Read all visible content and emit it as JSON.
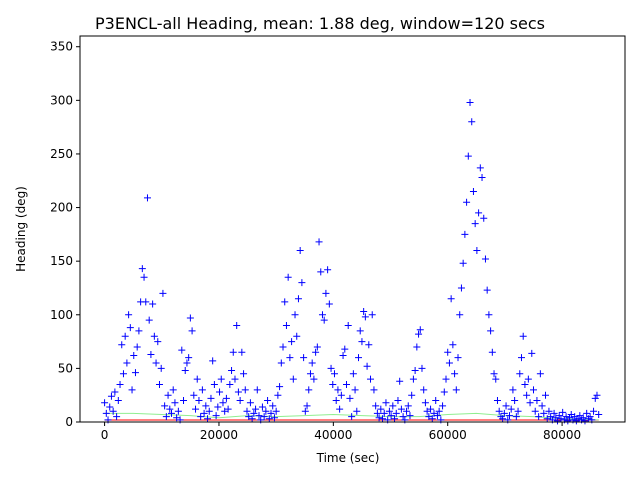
{
  "chart_data": {
    "type": "scatter",
    "title": "P3ENCL-all Heading, mean: 1.88 deg, window=120 secs",
    "xlabel": "Time (sec)",
    "ylabel": "Heading (deg)",
    "xlim": [
      -4300,
      91000
    ],
    "ylim": [
      0,
      360
    ],
    "xticks": [
      0,
      20000,
      40000,
      60000,
      80000
    ],
    "xtick_labels": [
      "0",
      "20000",
      "40000",
      "60000",
      "80000"
    ],
    "yticks": [
      0,
      50,
      100,
      150,
      200,
      250,
      300,
      350
    ],
    "ytick_labels": [
      "0",
      "50",
      "100",
      "150",
      "200",
      "250",
      "300",
      "350"
    ],
    "grid": false,
    "colors": {
      "points": "#0000ff",
      "mean_line": "#ff0000",
      "smooth_line": "#90ee90"
    },
    "series": [
      {
        "marker": "+",
        "points": [
          [
            0,
            18
          ],
          [
            300,
            8
          ],
          [
            600,
            2
          ],
          [
            900,
            14
          ],
          [
            1200,
            24
          ],
          [
            1500,
            10
          ],
          [
            1800,
            28
          ],
          [
            2100,
            5
          ],
          [
            2400,
            20
          ],
          [
            2700,
            35
          ],
          [
            3000,
            72
          ],
          [
            3300,
            45
          ],
          [
            3600,
            80
          ],
          [
            3900,
            55
          ],
          [
            4200,
            100
          ],
          [
            4500,
            88
          ],
          [
            4800,
            30
          ],
          [
            5100,
            62
          ],
          [
            5400,
            46
          ],
          [
            5700,
            70
          ],
          [
            6000,
            85
          ],
          [
            6300,
            112
          ],
          [
            6600,
            143
          ],
          [
            6900,
            135
          ],
          [
            7200,
            112
          ],
          [
            7500,
            209
          ],
          [
            7800,
            95
          ],
          [
            8100,
            63
          ],
          [
            8400,
            110
          ],
          [
            8700,
            80
          ],
          [
            9000,
            55
          ],
          [
            9300,
            75
          ],
          [
            9600,
            35
          ],
          [
            9900,
            50
          ],
          [
            10200,
            120
          ],
          [
            10500,
            15
          ],
          [
            10800,
            5
          ],
          [
            11100,
            25
          ],
          [
            11400,
            12
          ],
          [
            11700,
            8
          ],
          [
            12000,
            30
          ],
          [
            12300,
            18
          ],
          [
            12600,
            4
          ],
          [
            12900,
            10
          ],
          [
            13200,
            2
          ],
          [
            13500,
            67
          ],
          [
            13800,
            20
          ],
          [
            14100,
            48
          ],
          [
            14400,
            55
          ],
          [
            14700,
            60
          ],
          [
            15000,
            97
          ],
          [
            15300,
            85
          ],
          [
            15600,
            25
          ],
          [
            15900,
            12
          ],
          [
            16200,
            40
          ],
          [
            16500,
            20
          ],
          [
            16800,
            5
          ],
          [
            17100,
            30
          ],
          [
            17400,
            8
          ],
          [
            17700,
            15
          ],
          [
            18000,
            3
          ],
          [
            18300,
            10
          ],
          [
            18600,
            22
          ],
          [
            18900,
            57
          ],
          [
            19200,
            35
          ],
          [
            19500,
            6
          ],
          [
            19800,
            14
          ],
          [
            20100,
            28
          ],
          [
            20400,
            40
          ],
          [
            20700,
            18
          ],
          [
            21000,
            10
          ],
          [
            21300,
            22
          ],
          [
            21600,
            12
          ],
          [
            21900,
            35
          ],
          [
            22200,
            48
          ],
          [
            22500,
            65
          ],
          [
            22800,
            40
          ],
          [
            23100,
            90
          ],
          [
            23400,
            28
          ],
          [
            23700,
            20
          ],
          [
            24000,
            65
          ],
          [
            24300,
            45
          ],
          [
            24600,
            30
          ],
          [
            24900,
            10
          ],
          [
            25200,
            5
          ],
          [
            25500,
            18
          ],
          [
            25800,
            3
          ],
          [
            26100,
            8
          ],
          [
            26400,
            12
          ],
          [
            26700,
            30
          ],
          [
            27000,
            6
          ],
          [
            27300,
            2
          ],
          [
            27600,
            14
          ],
          [
            27900,
            5
          ],
          [
            28200,
            10
          ],
          [
            28500,
            20
          ],
          [
            28800,
            3
          ],
          [
            29100,
            8
          ],
          [
            29400,
            15
          ],
          [
            29700,
            4
          ],
          [
            30000,
            10
          ],
          [
            30300,
            25
          ],
          [
            30600,
            33
          ],
          [
            30900,
            55
          ],
          [
            31200,
            70
          ],
          [
            31500,
            112
          ],
          [
            31800,
            90
          ],
          [
            32100,
            135
          ],
          [
            32400,
            60
          ],
          [
            32700,
            75
          ],
          [
            33000,
            40
          ],
          [
            33300,
            100
          ],
          [
            33600,
            80
          ],
          [
            33900,
            115
          ],
          [
            34200,
            160
          ],
          [
            34500,
            130
          ],
          [
            34800,
            60
          ],
          [
            35100,
            10
          ],
          [
            35400,
            15
          ],
          [
            35700,
            30
          ],
          [
            36000,
            45
          ],
          [
            36300,
            55
          ],
          [
            36600,
            40
          ],
          [
            36900,
            65
          ],
          [
            37200,
            70
          ],
          [
            37500,
            168
          ],
          [
            37800,
            140
          ],
          [
            38100,
            100
          ],
          [
            38400,
            95
          ],
          [
            38700,
            120
          ],
          [
            39000,
            142
          ],
          [
            39300,
            110
          ],
          [
            39600,
            50
          ],
          [
            39900,
            35
          ],
          [
            40200,
            45
          ],
          [
            40500,
            20
          ],
          [
            40800,
            30
          ],
          [
            41100,
            12
          ],
          [
            41400,
            25
          ],
          [
            41700,
            62
          ],
          [
            42000,
            68
          ],
          [
            42300,
            35
          ],
          [
            42600,
            90
          ],
          [
            42900,
            22
          ],
          [
            43200,
            5
          ],
          [
            43500,
            45
          ],
          [
            43800,
            30
          ],
          [
            44100,
            10
          ],
          [
            44400,
            60
          ],
          [
            44700,
            85
          ],
          [
            45000,
            75
          ],
          [
            45300,
            103
          ],
          [
            45600,
            98
          ],
          [
            45900,
            52
          ],
          [
            46200,
            72
          ],
          [
            46500,
            40
          ],
          [
            46800,
            100
          ],
          [
            47100,
            30
          ],
          [
            47400,
            15
          ],
          [
            47700,
            8
          ],
          [
            48000,
            4
          ],
          [
            48300,
            12
          ],
          [
            48600,
            3
          ],
          [
            48900,
            8
          ],
          [
            49200,
            18
          ],
          [
            49500,
            2
          ],
          [
            49800,
            10
          ],
          [
            50100,
            6
          ],
          [
            50400,
            15
          ],
          [
            50700,
            3
          ],
          [
            51000,
            8
          ],
          [
            51300,
            20
          ],
          [
            51600,
            38
          ],
          [
            51900,
            12
          ],
          [
            52200,
            5
          ],
          [
            52500,
            2
          ],
          [
            52800,
            10
          ],
          [
            53100,
            15
          ],
          [
            53400,
            6
          ],
          [
            53700,
            25
          ],
          [
            54000,
            40
          ],
          [
            54300,
            48
          ],
          [
            54600,
            70
          ],
          [
            54900,
            82
          ],
          [
            55200,
            86
          ],
          [
            55500,
            50
          ],
          [
            55800,
            30
          ],
          [
            56100,
            18
          ],
          [
            56400,
            10
          ],
          [
            56700,
            5
          ],
          [
            57000,
            12
          ],
          [
            57300,
            3
          ],
          [
            57600,
            8
          ],
          [
            57900,
            20
          ],
          [
            58200,
            6
          ],
          [
            58500,
            10
          ],
          [
            58800,
            2
          ],
          [
            59100,
            15
          ],
          [
            59400,
            28
          ],
          [
            59700,
            40
          ],
          [
            60000,
            65
          ],
          [
            60300,
            55
          ],
          [
            60600,
            115
          ],
          [
            60900,
            72
          ],
          [
            61200,
            45
          ],
          [
            61500,
            30
          ],
          [
            61800,
            60
          ],
          [
            62100,
            100
          ],
          [
            62400,
            125
          ],
          [
            62700,
            148
          ],
          [
            63000,
            175
          ],
          [
            63300,
            205
          ],
          [
            63600,
            248
          ],
          [
            63900,
            298
          ],
          [
            64200,
            280
          ],
          [
            64500,
            215
          ],
          [
            64800,
            185
          ],
          [
            65100,
            160
          ],
          [
            65400,
            195
          ],
          [
            65700,
            237
          ],
          [
            66000,
            228
          ],
          [
            66300,
            190
          ],
          [
            66600,
            152
          ],
          [
            66900,
            123
          ],
          [
            67200,
            100
          ],
          [
            67500,
            85
          ],
          [
            67800,
            65
          ],
          [
            68100,
            45
          ],
          [
            68400,
            40
          ],
          [
            68700,
            20
          ],
          [
            69000,
            10
          ],
          [
            69300,
            5
          ],
          [
            69600,
            3
          ],
          [
            69900,
            8
          ],
          [
            70200,
            15
          ],
          [
            70500,
            2
          ],
          [
            70800,
            6
          ],
          [
            71100,
            12
          ],
          [
            71400,
            30
          ],
          [
            71700,
            20
          ],
          [
            72000,
            5
          ],
          [
            72300,
            10
          ],
          [
            72600,
            45
          ],
          [
            72900,
            60
          ],
          [
            73200,
            80
          ],
          [
            73500,
            35
          ],
          [
            73800,
            25
          ],
          [
            74100,
            40
          ],
          [
            74400,
            18
          ],
          [
            74700,
            64
          ],
          [
            75000,
            30
          ],
          [
            75300,
            10
          ],
          [
            75600,
            20
          ],
          [
            75900,
            5
          ],
          [
            76200,
            45
          ],
          [
            76500,
            15
          ],
          [
            76800,
            8
          ],
          [
            77100,
            25
          ],
          [
            77400,
            3
          ],
          [
            77700,
            10
          ],
          [
            78000,
            5
          ],
          [
            78300,
            2
          ],
          [
            78600,
            8
          ],
          [
            78900,
            4
          ],
          [
            79200,
            1
          ],
          [
            79500,
            6
          ],
          [
            79800,
            3
          ],
          [
            80100,
            9
          ],
          [
            80400,
            2
          ],
          [
            80700,
            5
          ],
          [
            81000,
            1
          ],
          [
            81300,
            4
          ],
          [
            81600,
            7
          ],
          [
            81900,
            2
          ],
          [
            82200,
            5
          ],
          [
            82500,
            1
          ],
          [
            82800,
            3
          ],
          [
            83100,
            6
          ],
          [
            83400,
            2
          ],
          [
            83700,
            4
          ],
          [
            84000,
            1
          ],
          [
            84300,
            8
          ],
          [
            84600,
            3
          ],
          [
            84900,
            5
          ],
          [
            85200,
            2
          ],
          [
            85500,
            10
          ],
          [
            85800,
            22
          ],
          [
            86100,
            25
          ],
          [
            86400,
            7
          ]
        ]
      }
    ],
    "mean_line": {
      "y": 1.88,
      "x_range": [
        0,
        86400
      ]
    },
    "smooth_line": {
      "points": [
        [
          0,
          8
        ],
        [
          5000,
          8
        ],
        [
          10000,
          7
        ],
        [
          15000,
          6
        ],
        [
          20000,
          4
        ],
        [
          25000,
          6
        ],
        [
          30000,
          5
        ],
        [
          35000,
          6
        ],
        [
          40000,
          7
        ],
        [
          45000,
          6
        ],
        [
          50000,
          5
        ],
        [
          55000,
          5
        ],
        [
          60000,
          7
        ],
        [
          65000,
          8
        ],
        [
          70000,
          6
        ],
        [
          75000,
          5
        ],
        [
          80000,
          3
        ],
        [
          86400,
          2
        ]
      ]
    }
  }
}
